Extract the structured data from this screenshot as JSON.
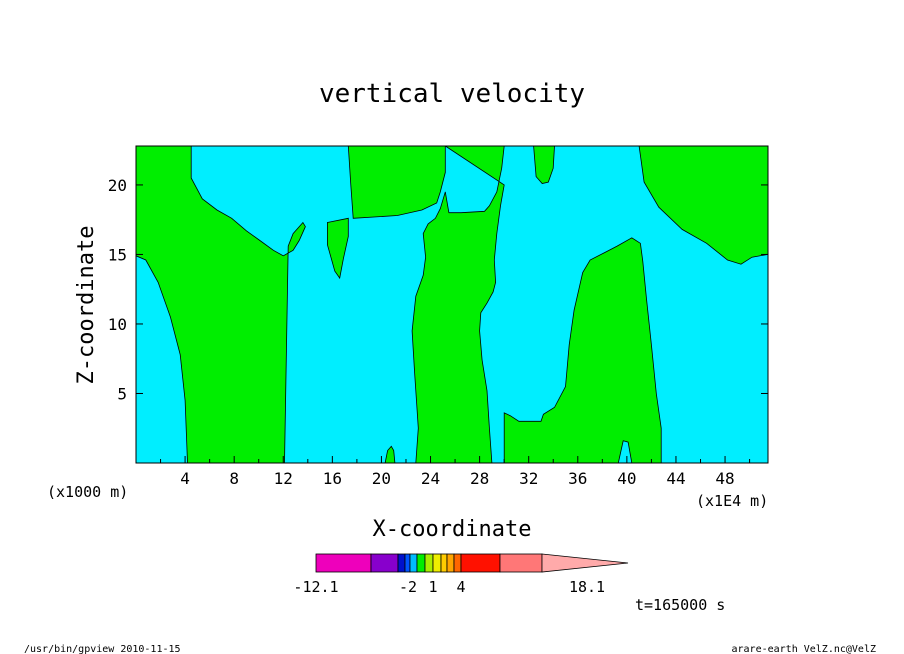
{
  "chart_data": {
    "type": "heatmap",
    "title": "vertical velocity",
    "xlabel": "X-coordinate",
    "ylabel": "Z-coordinate",
    "x_unit_left": "(x1000 m)",
    "x_unit_right": "(x1E4 m)",
    "xlim": [
      0,
      51.5
    ],
    "ylim": [
      0,
      22.8
    ],
    "x_ticks": [
      "4",
      "8",
      "12",
      "16",
      "20",
      "24",
      "28",
      "32",
      "36",
      "40",
      "44",
      "48"
    ],
    "y_ticks": [
      "5",
      "10",
      "15",
      "20"
    ],
    "colors": {
      "cyan": "#00eeff",
      "green": "#00ee00"
    },
    "regions": [
      {
        "fill": "green",
        "points": [
          [
            0,
            22.8
          ],
          [
            4.5,
            22.8
          ],
          [
            4.5,
            20.5
          ],
          [
            5.4,
            19.0
          ],
          [
            6.6,
            18.2
          ],
          [
            7.8,
            17.6
          ],
          [
            9.0,
            16.7
          ],
          [
            10.1,
            16.0
          ],
          [
            11.2,
            15.3
          ],
          [
            12.0,
            14.9
          ],
          [
            12.8,
            15.3
          ],
          [
            13.3,
            16.0
          ],
          [
            13.8,
            17.0
          ],
          [
            13.6,
            17.3
          ],
          [
            12.8,
            16.5
          ],
          [
            12.4,
            15.6
          ],
          [
            12.1,
            0
          ],
          [
            4.2,
            0
          ],
          [
            4.0,
            4.5
          ],
          [
            3.6,
            7.8
          ],
          [
            2.8,
            10.5
          ],
          [
            1.8,
            13.0
          ],
          [
            0.8,
            14.6
          ],
          [
            0,
            14.9
          ]
        ]
      },
      {
        "fill": "green",
        "points": [
          [
            15.6,
            17.3
          ],
          [
            17.3,
            17.6
          ],
          [
            17.3,
            16.3
          ],
          [
            16.9,
            14.7
          ],
          [
            16.6,
            13.3
          ],
          [
            16.2,
            13.8
          ],
          [
            15.6,
            15.7
          ]
        ]
      },
      {
        "fill": "green",
        "points": [
          [
            17.3,
            22.8
          ],
          [
            25.2,
            22.8
          ],
          [
            25.2,
            20.9
          ],
          [
            24.8,
            19.5
          ],
          [
            24.5,
            18.7
          ],
          [
            23.3,
            18.2
          ],
          [
            21.3,
            17.8
          ],
          [
            17.7,
            17.6
          ],
          [
            17.5,
            20.0
          ]
        ]
      },
      {
        "fill": "green",
        "points": [
          [
            25.2,
            22.8
          ],
          [
            30.0,
            22.8
          ],
          [
            29.8,
            21.2
          ],
          [
            29.4,
            19.5
          ],
          [
            28.8,
            18.5
          ],
          [
            28.4,
            18.1
          ],
          [
            26.5,
            18.0
          ],
          [
            25.5,
            18.0
          ],
          [
            25.2,
            19.5
          ],
          [
            24.8,
            18.3
          ],
          [
            24.4,
            17.6
          ],
          [
            23.8,
            17.2
          ],
          [
            23.4,
            16.5
          ],
          [
            23.6,
            14.8
          ],
          [
            23.4,
            13.5
          ],
          [
            22.8,
            12.0
          ],
          [
            22.5,
            9.5
          ],
          [
            22.7,
            6.5
          ],
          [
            23.0,
            2.5
          ],
          [
            22.8,
            0
          ],
          [
            29.0,
            0
          ],
          [
            28.8,
            2.5
          ],
          [
            28.6,
            5.2
          ],
          [
            28.2,
            7.4
          ],
          [
            28.0,
            9.5
          ],
          [
            28.1,
            10.8
          ],
          [
            28.6,
            11.5
          ],
          [
            29.1,
            12.3
          ],
          [
            29.3,
            13.0
          ],
          [
            29.2,
            14.6
          ],
          [
            29.4,
            16.5
          ],
          [
            29.7,
            18.5
          ],
          [
            30.0,
            20.0
          ]
        ]
      },
      {
        "fill": "green",
        "points": [
          [
            32.4,
            22.8
          ],
          [
            34.1,
            22.8
          ],
          [
            34.0,
            21.2
          ],
          [
            33.6,
            20.2
          ],
          [
            33.1,
            20.1
          ],
          [
            32.6,
            20.6
          ]
        ]
      },
      {
        "fill": "green",
        "points": [
          [
            30.0,
            0
          ],
          [
            30.0,
            3.6
          ],
          [
            30.5,
            3.4
          ],
          [
            31.2,
            3.0
          ],
          [
            33.0,
            3.0
          ],
          [
            33.2,
            3.5
          ],
          [
            34.1,
            4.0
          ],
          [
            35.0,
            5.5
          ],
          [
            35.3,
            8.5
          ],
          [
            35.7,
            11.0
          ],
          [
            36.4,
            13.7
          ],
          [
            37.0,
            14.6
          ],
          [
            38.1,
            15.1
          ],
          [
            39.2,
            15.6
          ],
          [
            40.4,
            16.2
          ],
          [
            41.1,
            15.8
          ],
          [
            41.3,
            14.5
          ],
          [
            41.6,
            11.8
          ],
          [
            42.0,
            8.5
          ],
          [
            42.4,
            5.0
          ],
          [
            42.8,
            2.5
          ],
          [
            42.8,
            0
          ],
          [
            40.4,
            0
          ],
          [
            40.1,
            1.5
          ],
          [
            39.7,
            1.6
          ],
          [
            39.3,
            0
          ]
        ]
      },
      {
        "fill": "green",
        "points": [
          [
            41.0,
            22.8
          ],
          [
            51.5,
            22.8
          ],
          [
            51.5,
            15.0
          ],
          [
            50.2,
            14.8
          ],
          [
            49.3,
            14.3
          ],
          [
            48.2,
            14.6
          ],
          [
            46.5,
            15.8
          ],
          [
            44.5,
            16.8
          ],
          [
            42.6,
            18.4
          ],
          [
            41.4,
            20.2
          ]
        ]
      },
      {
        "fill": "green",
        "points": [
          [
            20.3,
            0
          ],
          [
            20.5,
            0.9
          ],
          [
            20.8,
            1.2
          ],
          [
            21.0,
            0.9
          ],
          [
            21.1,
            0
          ]
        ]
      }
    ]
  },
  "colorbar": {
    "min_label": "-12.1",
    "mid_labels": [
      "-2",
      "1",
      "4"
    ],
    "max_label": "18.1",
    "colors": [
      "#ee00bb",
      "#8800cc",
      "#0011cc",
      "#0055ff",
      "#00bbff",
      "#00ee00",
      "#aaee00",
      "#eeee00",
      "#ffcc00",
      "#ffa500",
      "#ff6600",
      "#ff1100",
      "#ff7777",
      "#ffaaaa"
    ]
  },
  "time_label": "t=165000 s",
  "footer_left": "/usr/bin/gpview  2010-11-15",
  "footer_right": "arare-earth_VelZ.nc@VelZ"
}
